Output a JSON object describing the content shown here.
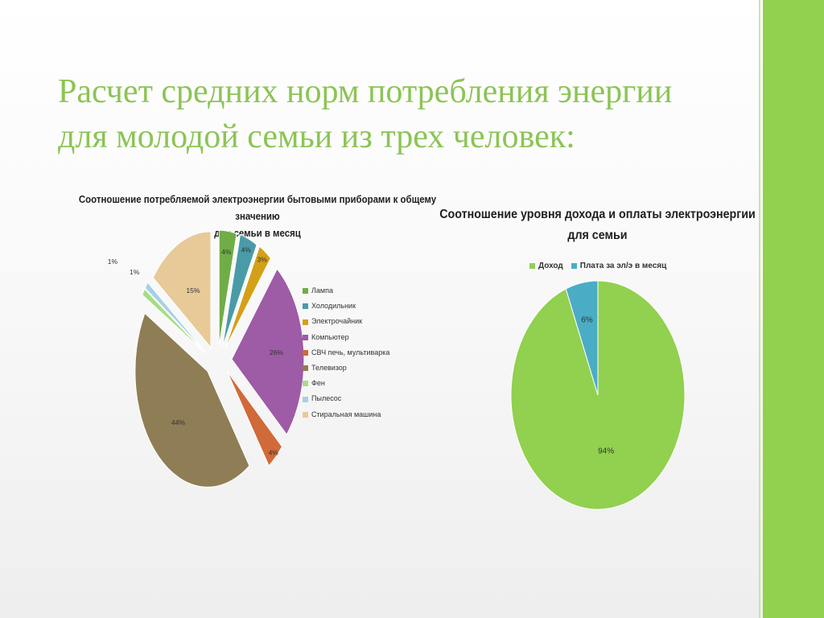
{
  "slide": {
    "title_line1": "Расчет средних норм потребления энергии",
    "title_line2": "для молодой семьи из трех человек:",
    "accent_color": "#92d050"
  },
  "chart_data": [
    {
      "type": "pie",
      "exploded": true,
      "title_line1": "Соотношение потребляемой электроэнергии бытовыми приборами к общему значению",
      "title_line2": "для семьи в месяц",
      "legend_position": "right",
      "categories": [
        "Лампа",
        "Холодильник",
        "Электрочайник",
        "Компьютер",
        "СВЧ печь, мультиварка",
        "Телевизор",
        "Фен",
        "Пылесос",
        "Стиральная машина"
      ],
      "values": [
        4,
        4,
        3,
        26,
        4,
        44,
        1,
        1,
        15
      ],
      "labels": [
        "4%",
        "4%",
        "3%",
        "26%",
        "4%",
        "44%",
        "1%",
        "1%",
        "15%"
      ],
      "colors": [
        "#70ad47",
        "#4a9ba8",
        "#d4a017",
        "#9e5ba6",
        "#d06a38",
        "#8f7d55",
        "#a8dc86",
        "#a7d0e6",
        "#e8c998"
      ]
    },
    {
      "type": "pie",
      "title_line1": "Соотношение уровня дохода и оплаты электроэнергии",
      "title_line2": "для семьи",
      "legend_position": "top",
      "categories": [
        "Доход",
        "Плата за эл/э в месяц"
      ],
      "values": [
        94,
        6
      ],
      "labels": [
        "94%",
        "6%"
      ],
      "colors": [
        "#92d050",
        "#4bacc6"
      ]
    }
  ]
}
